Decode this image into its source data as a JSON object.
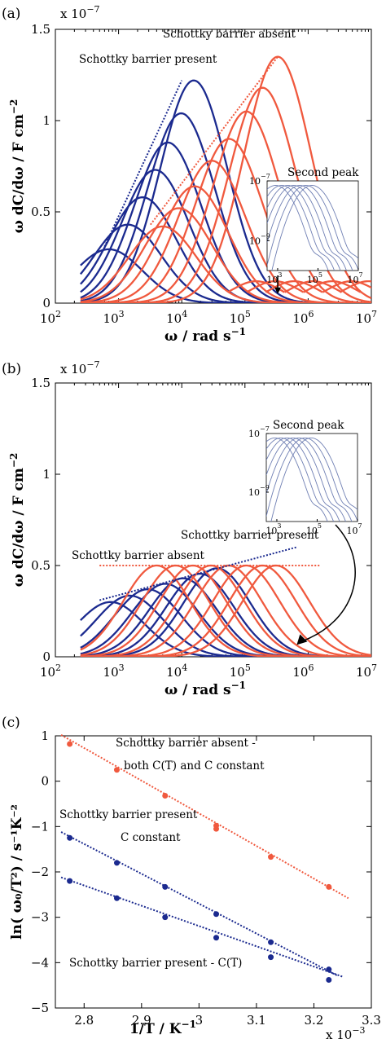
{
  "colors": {
    "red": "#f0593e",
    "blue": "#1b2a8f",
    "inset": "#6f7fb3",
    "axis": "#000000"
  },
  "chart_data": [
    {
      "id": "a",
      "panel_label": "(a)",
      "type": "line",
      "x_scale": "log",
      "xlim": [
        100,
        10000000
      ],
      "ylim": [
        0,
        1.5e-07
      ],
      "x_ticks": [
        100,
        1000,
        10000,
        100000,
        1000000,
        10000000
      ],
      "x_tick_labels": [
        [
          "10",
          "2"
        ],
        [
          "10",
          "3"
        ],
        [
          "10",
          "4"
        ],
        [
          "10",
          "5"
        ],
        [
          "10",
          "6"
        ],
        [
          "10",
          "7"
        ]
      ],
      "y_ticks": [
        0,
        5e-08,
        1e-07,
        1.5e-07
      ],
      "y_tick_labels": [
        "0",
        "0.5",
        "1",
        "1.5"
      ],
      "y_multiplier": "x 10",
      "y_multiplier_exp": "−7",
      "xlabel": "ω / rad s",
      "xlabel_exp": "−1",
      "ylabel": "ω dC/dω / F cm",
      "ylabel_exp": "−2",
      "x_start": 250,
      "blue_curves": {
        "peak_omega": [
          700,
          1400,
          2400,
          3800,
          6000,
          9800,
          15500
        ],
        "peak_height": [
          2.95e-08,
          4.3e-08,
          5.8e-08,
          7.3e-08,
          8.8e-08,
          1.04e-07,
          1.22e-07
        ],
        "width": 1.25
      },
      "red_curves": {
        "peak_omega": [
          5000,
          9000,
          16000,
          30000,
          56000,
          105000,
          190000,
          330000
        ],
        "peak_height": [
          4.2e-08,
          5.2e-08,
          6.4e-08,
          7.8e-08,
          9e-08,
          1.05e-07,
          1.18e-07,
          1.35e-07
        ],
        "width": 1.25
      },
      "blue_trend": {
        "x": [
          600,
          10000
        ],
        "y": [
          3.1e-08,
          1.22e-07
        ]
      },
      "red_trend": {
        "x": [
          3200,
          330000
        ],
        "y": [
          4.3e-08,
          1.35e-07
        ]
      },
      "annotations": {
        "red_label": "Schottky barrier absent",
        "blue_label": "Schottky barrier present",
        "second_peak_label": "Second peak"
      },
      "second_peak_omega": [
        150000,
        300000,
        600000,
        1200000,
        2400000,
        4800000,
        9000000
      ],
      "second_peak_height": 1.2e-08,
      "arrow_to": [
        330000,
        5e-09
      ],
      "inset": {
        "xlim": [
          300,
          10000000
        ],
        "ylim_exp": [
          -10,
          -7
        ],
        "x_tick_labels": [
          [
            "10",
            "3"
          ],
          [
            "10",
            "5"
          ],
          [
            "10",
            "7"
          ]
        ],
        "y_tick_labels": [
          [
            "10",
            "−7"
          ],
          [
            "10",
            "−9"
          ]
        ],
        "main_peak_exp": [
          2.9,
          3.2,
          3.5,
          3.8,
          4.1,
          4.4,
          4.7
        ],
        "second_peak_exp": [
          5.0,
          5.3,
          5.6,
          5.9,
          6.2,
          6.5,
          6.8
        ]
      }
    },
    {
      "id": "b",
      "panel_label": "(b)",
      "type": "line",
      "x_scale": "log",
      "xlim": [
        100,
        10000000
      ],
      "ylim": [
        0,
        1.5e-07
      ],
      "x_ticks": [
        100,
        1000,
        10000,
        100000,
        1000000,
        10000000
      ],
      "x_tick_labels": [
        [
          "10",
          "2"
        ],
        [
          "10",
          "3"
        ],
        [
          "10",
          "4"
        ],
        [
          "10",
          "5"
        ],
        [
          "10",
          "6"
        ],
        [
          "10",
          "7"
        ]
      ],
      "y_ticks": [
        0,
        5e-08,
        1e-07,
        1.5e-07
      ],
      "y_tick_labels": [
        "0",
        "0.5",
        "1",
        "1.5"
      ],
      "y_multiplier": "x 10",
      "y_multiplier_exp": "−7",
      "xlabel": "ω / rad s",
      "xlabel_exp": "−1",
      "ylabel": "ω dC/dω / F cm",
      "ylabel_exp": "−2",
      "x_start": 250,
      "blue_curves": {
        "peak_omega": [
          750,
          1500,
          2900,
          5500,
          10500,
          19500,
          36000
        ],
        "peak_height": [
          3e-08,
          3.35e-08,
          3.7e-08,
          4e-08,
          4.3e-08,
          4.55e-08,
          4.85e-08
        ],
        "width": 1.25
      },
      "red_curves": {
        "peak_omega": [
          4000,
          8000,
          15000,
          29000,
          55000,
          105000,
          190000,
          310000
        ],
        "peak_height": [
          5e-08,
          5e-08,
          5e-08,
          5e-08,
          5e-08,
          5e-08,
          5e-08,
          5e-08
        ],
        "width": 1.25
      },
      "blue_trend": {
        "x": [
          500,
          650000
        ],
        "y": [
          3.1e-08,
          6e-08
        ]
      },
      "red_trend": {
        "x": [
          500,
          1600000
        ],
        "y": [
          5e-08,
          5e-08
        ]
      },
      "annotations": {
        "red_label": "Schottky barrier absent",
        "blue_label": "Schottky barrier present",
        "second_peak_label": "Second peak"
      },
      "arrow_to": [
        700000,
        7e-09
      ],
      "inset": {
        "xlim": [
          300,
          10000000
        ],
        "ylim_exp": [
          -10,
          -7
        ],
        "x_tick_labels": [
          [
            "10",
            "3"
          ],
          [
            "10",
            "5"
          ],
          [
            "10",
            "7"
          ]
        ],
        "y_tick_labels": [
          [
            "10",
            "−7"
          ],
          [
            "10",
            "−9"
          ]
        ],
        "main_peak_exp": [
          2.9,
          3.2,
          3.5,
          3.8,
          4.1,
          4.4,
          4.7
        ],
        "second_peak_exp": [
          5.0,
          5.3,
          5.6,
          5.9,
          6.2,
          6.5,
          6.8
        ]
      }
    },
    {
      "id": "c",
      "panel_label": "(c)",
      "type": "scatter",
      "xlim": [
        2.75,
        3.3
      ],
      "ylim": [
        -5,
        1
      ],
      "x_ticks": [
        2.8,
        2.9,
        3.0,
        3.1,
        3.2,
        3.3
      ],
      "x_tick_labels": [
        "2.8",
        "2.9",
        "3",
        "3.1",
        "3.2",
        "3.3"
      ],
      "y_ticks": [
        -5,
        -4,
        -3,
        -2,
        -1,
        0,
        1
      ],
      "y_tick_labels": [
        "−5",
        "−4",
        "−3",
        "−2",
        "−1",
        "0",
        "1"
      ],
      "x_multiplier": "x 10",
      "x_multiplier_exp": "−3",
      "xlabel": "1/T / K",
      "xlabel_exp": "−1",
      "ylabel": "ln( ω₀/T²) / s⁻¹K⁻²",
      "series": [
        {
          "color_key": "red",
          "x": [
            2.775,
            2.857,
            2.941,
            3.03,
            3.03,
            3.125,
            3.226
          ],
          "y": [
            0.82,
            0.25,
            -0.32,
            -0.98,
            -1.05,
            -1.67,
            -2.33
          ],
          "fit_x": [
            2.76,
            3.26
          ],
          "fit_y": [
            1.02,
            -2.58
          ],
          "label_lines": [
            "Schottky barrier absent  -",
            "both C(T) and C constant"
          ]
        },
        {
          "color_key": "blue",
          "x": [
            2.775,
            2.857,
            2.941,
            3.03,
            3.125,
            3.226
          ],
          "y": [
            -1.25,
            -1.8,
            -2.33,
            -2.93,
            -3.55,
            -4.15
          ],
          "fit_x": [
            2.76,
            3.24
          ],
          "fit_y": [
            -1.12,
            -4.28
          ],
          "label_lines": [
            "Schottky barrier present",
            "C constant"
          ]
        },
        {
          "color_key": "blue",
          "x": [
            2.775,
            2.857,
            2.941,
            3.03,
            3.125,
            3.226
          ],
          "y": [
            -2.2,
            -2.58,
            -3.0,
            -3.45,
            -3.88,
            -4.38
          ],
          "fit_x": [
            2.76,
            3.25
          ],
          "fit_y": [
            -2.12,
            -4.31
          ],
          "label_lines": [
            "Schottky barrier present -  C(T)"
          ]
        }
      ]
    }
  ]
}
